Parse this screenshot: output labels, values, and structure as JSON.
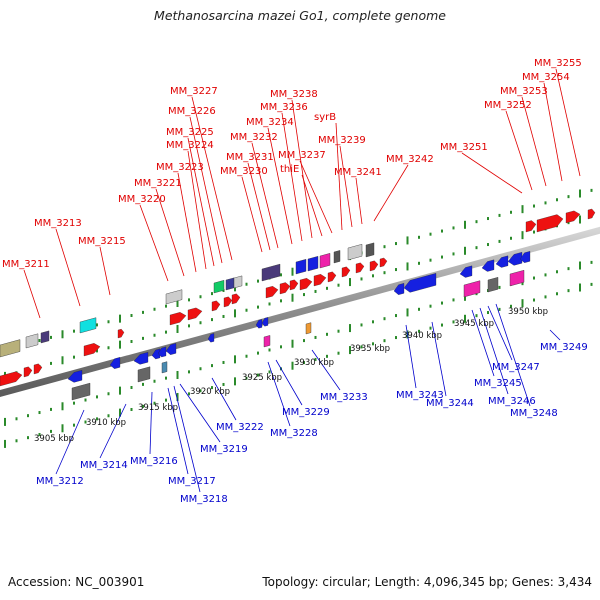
{
  "title": "Methanosarcina mazei Go1, complete genome",
  "footer": {
    "accession": "Accession: NC_003901",
    "summary": "Topology: circular; Length: 4,096,345 bp; Genes: 3,434"
  },
  "colors": {
    "forward_label": "#e00000",
    "reverse_label": "#0000cc",
    "backbone": "#8c8c8c",
    "tick": "#2a8a2a"
  },
  "scale": [
    "3905 kbp",
    "3910 kbp",
    "3915 kbp",
    "3920 kbp",
    "3925 kbp",
    "3930 kbp",
    "3935 kbp",
    "3940 kbp",
    "3945 kbp",
    "3950 kbp"
  ],
  "top_labels": [
    "MM_3211",
    "MM_3213",
    "MM_3215",
    "MM_3220",
    "MM_3221",
    "MM_3223",
    "MM_3224",
    "MM_3225",
    "MM_3226",
    "MM_3227",
    "MM_3230",
    "MM_3231",
    "MM_3232",
    "MM_3234",
    "MM_3236",
    "MM_3238",
    "thiE",
    "MM_3237",
    "syrB",
    "MM_3239",
    "MM_3241",
    "MM_3242",
    "MM_3251",
    "MM_3252",
    "MM_3253",
    "MM_3254",
    "MM_3255"
  ],
  "bottom_labels": [
    "MM_3212",
    "MM_3214",
    "MM_3216",
    "MM_3217",
    "MM_3218",
    "MM_3219",
    "MM_3222",
    "MM_3228",
    "MM_3229",
    "MM_3233",
    "MM_3243",
    "MM_3244",
    "MM_3245",
    "MM_3246",
    "MM_3247",
    "MM_3248",
    "MM_3249"
  ]
}
